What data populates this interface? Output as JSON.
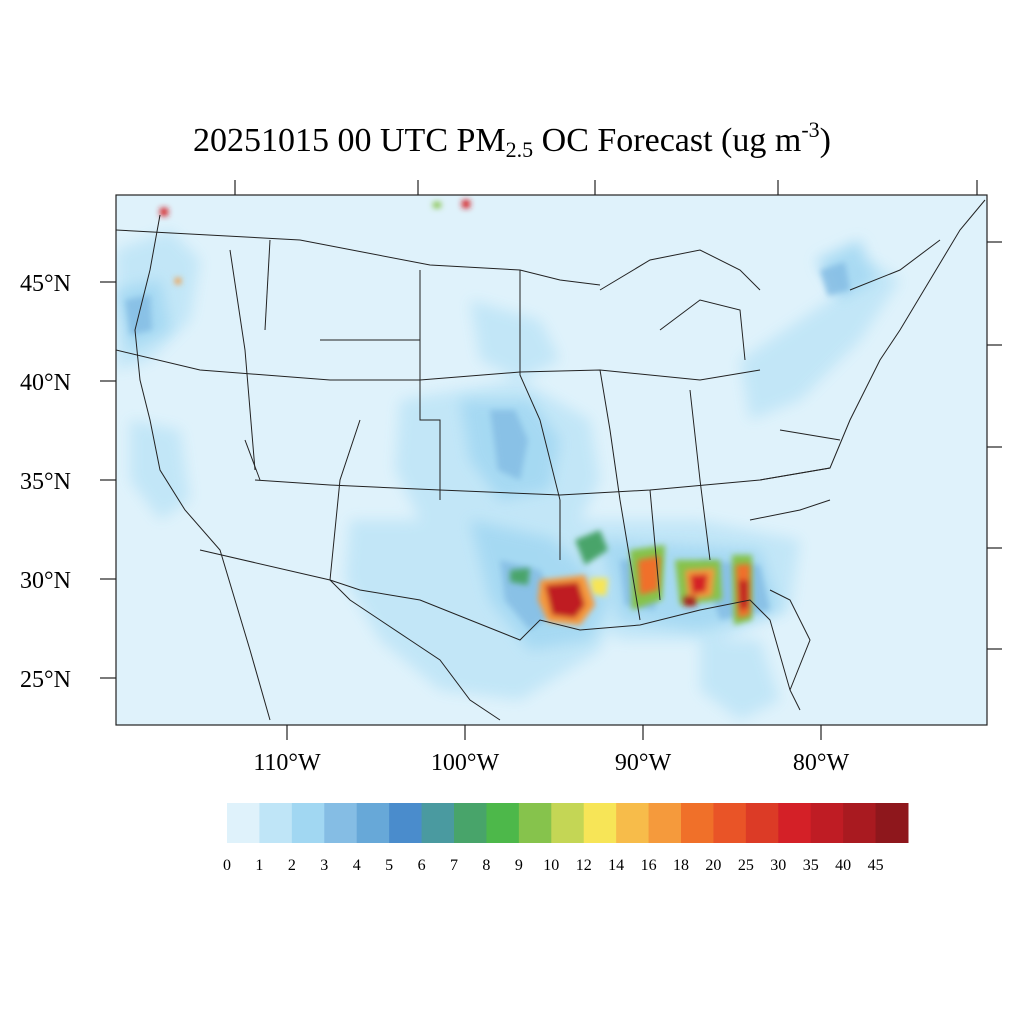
{
  "title": {
    "main": "20251015 00 UTC PM",
    "sub": "2.5",
    "mid": " OC Forecast (ug m",
    "sup": "-3",
    "end": ")"
  },
  "lat_labels": [
    "45°N",
    "40°N",
    "35°N",
    "30°N",
    "25°N"
  ],
  "lon_labels": [
    "110°W",
    "100°W",
    "90°W",
    "80°W"
  ],
  "colorbar": {
    "ticks": [
      "0",
      "1",
      "2",
      "3",
      "4",
      "5",
      "6",
      "7",
      "8",
      "9",
      "10",
      "12",
      "14",
      "16",
      "18",
      "20",
      "25",
      "30",
      "35",
      "40",
      "45"
    ],
    "colors": [
      "#dff2fb",
      "#bfe5f7",
      "#a1d7f2",
      "#85bde4",
      "#67a8d8",
      "#4a8ccc",
      "#4a9aa0",
      "#48a46a",
      "#4db84a",
      "#86c34c",
      "#c4d655",
      "#f7e557",
      "#f7bc4a",
      "#f59a3c",
      "#f07029",
      "#e95427",
      "#dc3b26",
      "#d42027",
      "#bf1c24",
      "#a91a20",
      "#8e171c"
    ]
  },
  "colors": {
    "ocean": "#dff2fb",
    "border": "#222222"
  }
}
